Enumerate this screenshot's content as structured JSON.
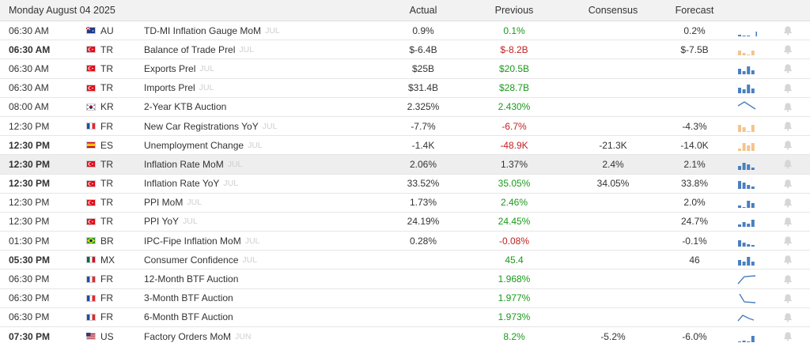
{
  "header": {
    "date": "Monday August 04 2025",
    "actual": "Actual",
    "previous": "Previous",
    "consensus": "Consensus",
    "forecast": "Forecast"
  },
  "colors": {
    "positive": "#1a9a1a",
    "negative": "#c42020",
    "spark_blue": "#4a7fbf",
    "spark_orange": "#f2c48d"
  },
  "rows": [
    {
      "time": "06:30 AM",
      "bold": false,
      "country": "AU",
      "flag": "au-flag-icon",
      "event": "TD-MI Inflation Gauge MoM",
      "ref": "JUL",
      "actual": "0.9%",
      "previous": "0.1%",
      "prev_color": "green",
      "consensus": "",
      "forecast": "0.2%",
      "spark_icon": "bar-sparkline-icon"
    },
    {
      "time": "06:30 AM",
      "bold": true,
      "country": "TR",
      "flag": "tr-flag-icon",
      "event": "Balance of Trade Prel",
      "ref": "JUL",
      "actual": "$-6.4B",
      "previous": "$-8.2B",
      "prev_color": "red",
      "consensus": "",
      "forecast": "$-7.5B",
      "spark_icon": "bar-sparkline-icon"
    },
    {
      "time": "06:30 AM",
      "bold": false,
      "country": "TR",
      "flag": "tr-flag-icon",
      "event": "Exports Prel",
      "ref": "JUL",
      "actual": "$25B",
      "previous": "$20.5B",
      "prev_color": "green",
      "consensus": "",
      "forecast": "",
      "spark_icon": "bar-sparkline-icon"
    },
    {
      "time": "06:30 AM",
      "bold": false,
      "country": "TR",
      "flag": "tr-flag-icon",
      "event": "Imports Prel",
      "ref": "JUL",
      "actual": "$31.4B",
      "previous": "$28.7B",
      "prev_color": "green",
      "consensus": "",
      "forecast": "",
      "spark_icon": "bar-sparkline-icon"
    },
    {
      "time": "08:00 AM",
      "bold": false,
      "country": "KR",
      "flag": "kr-flag-icon",
      "event": "2-Year KTB Auction",
      "ref": "",
      "actual": "2.325%",
      "previous": "2.430%",
      "prev_color": "green",
      "consensus": "",
      "forecast": "",
      "spark_icon": "line-sparkline-icon"
    },
    {
      "time": "12:30 PM",
      "bold": false,
      "country": "FR",
      "flag": "fr-flag-icon",
      "event": "New Car Registrations YoY",
      "ref": "JUL",
      "actual": "-7.7%",
      "previous": "-6.7%",
      "prev_color": "red",
      "consensus": "",
      "forecast": "-4.3%",
      "spark_icon": "bar-sparkline-icon"
    },
    {
      "time": "12:30 PM",
      "bold": true,
      "country": "ES",
      "flag": "es-flag-icon",
      "event": "Unemployment Change",
      "ref": "JUL",
      "actual": "-1.4K",
      "previous": "-48.9K",
      "prev_color": "red",
      "consensus": "-21.3K",
      "forecast": "-14.0K",
      "spark_icon": "bar-sparkline-icon"
    },
    {
      "time": "12:30 PM",
      "bold": true,
      "country": "TR",
      "flag": "tr-flag-icon",
      "event": "Inflation Rate MoM",
      "ref": "JUL",
      "actual": "2.06%",
      "previous": "1.37%",
      "prev_color": "",
      "consensus": "2.4%",
      "forecast": "2.1%",
      "spark_icon": "bar-sparkline-icon",
      "highlight": true
    },
    {
      "time": "12:30 PM",
      "bold": true,
      "country": "TR",
      "flag": "tr-flag-icon",
      "event": "Inflation Rate YoY",
      "ref": "JUL",
      "actual": "33.52%",
      "previous": "35.05%",
      "prev_color": "green",
      "consensus": "34.05%",
      "forecast": "33.8%",
      "spark_icon": "bar-sparkline-icon"
    },
    {
      "time": "12:30 PM",
      "bold": false,
      "country": "TR",
      "flag": "tr-flag-icon",
      "event": "PPI MoM",
      "ref": "JUL",
      "actual": "1.73%",
      "previous": "2.46%",
      "prev_color": "green",
      "consensus": "",
      "forecast": "2.0%",
      "spark_icon": "bar-sparkline-icon"
    },
    {
      "time": "12:30 PM",
      "bold": false,
      "country": "TR",
      "flag": "tr-flag-icon",
      "event": "PPI YoY",
      "ref": "JUL",
      "actual": "24.19%",
      "previous": "24.45%",
      "prev_color": "green",
      "consensus": "",
      "forecast": "24.7%",
      "spark_icon": "bar-sparkline-icon"
    },
    {
      "time": "01:30 PM",
      "bold": false,
      "country": "BR",
      "flag": "br-flag-icon",
      "event": "IPC-Fipe Inflation MoM",
      "ref": "JUL",
      "actual": "0.28%",
      "previous": "-0.08%",
      "prev_color": "red",
      "consensus": "",
      "forecast": "-0.1%",
      "spark_icon": "bar-sparkline-icon"
    },
    {
      "time": "05:30 PM",
      "bold": true,
      "country": "MX",
      "flag": "mx-flag-icon",
      "event": "Consumer Confidence",
      "ref": "JUL",
      "actual": "",
      "previous": "45.4",
      "prev_color": "green",
      "consensus": "",
      "forecast": "46",
      "spark_icon": "bar-sparkline-icon"
    },
    {
      "time": "06:30 PM",
      "bold": false,
      "country": "FR",
      "flag": "fr-flag-icon",
      "event": "12-Month BTF Auction",
      "ref": "",
      "actual": "",
      "previous": "1.968%",
      "prev_color": "green",
      "consensus": "",
      "forecast": "",
      "spark_icon": "line-sparkline-icon"
    },
    {
      "time": "06:30 PM",
      "bold": false,
      "country": "FR",
      "flag": "fr-flag-icon",
      "event": "3-Month BTF Auction",
      "ref": "",
      "actual": "",
      "previous": "1.977%",
      "prev_color": "green",
      "consensus": "",
      "forecast": "",
      "spark_icon": "line-sparkline-icon"
    },
    {
      "time": "06:30 PM",
      "bold": false,
      "country": "FR",
      "flag": "fr-flag-icon",
      "event": "6-Month BTF Auction",
      "ref": "",
      "actual": "",
      "previous": "1.973%",
      "prev_color": "green",
      "consensus": "",
      "forecast": "",
      "spark_icon": "line-sparkline-icon"
    },
    {
      "time": "07:30 PM",
      "bold": true,
      "country": "US",
      "flag": "us-flag-icon",
      "event": "Factory Orders MoM",
      "ref": "JUN",
      "actual": "",
      "previous": "8.2%",
      "prev_color": "green",
      "consensus": "-5.2%",
      "forecast": "-6.0%",
      "spark_icon": "bar-sparkline-icon"
    }
  ]
}
